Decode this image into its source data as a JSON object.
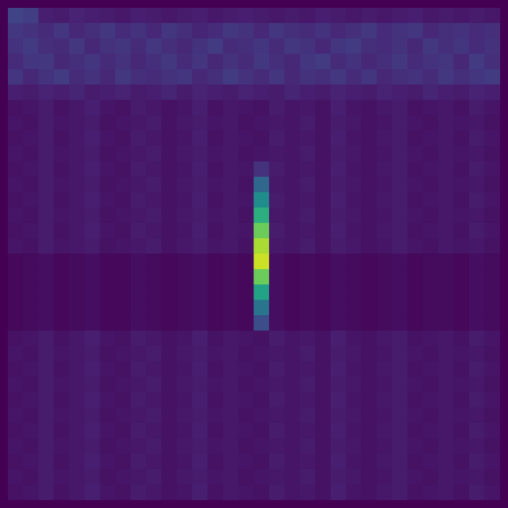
{
  "chart_data": {
    "type": "heatmap",
    "tick_labels": false,
    "grid": false,
    "cells": [
      [
        26,
        24,
        14,
        13,
        15,
        14,
        13,
        12,
        14,
        13,
        12,
        13,
        14,
        12,
        13,
        14,
        13,
        12,
        13,
        12,
        14,
        13,
        12,
        13,
        12,
        13,
        14,
        12,
        13,
        12,
        13,
        12
      ],
      [
        22,
        20,
        18,
        21,
        17,
        19,
        22,
        18,
        20,
        17,
        21,
        19,
        16,
        18,
        22,
        20,
        17,
        21,
        19,
        18,
        20,
        17,
        19,
        22,
        18,
        20,
        21,
        17,
        19,
        20,
        18,
        19
      ],
      [
        20,
        23,
        19,
        18,
        22,
        17,
        20,
        21,
        18,
        22,
        19,
        17,
        20,
        23,
        18,
        19,
        21,
        18,
        22,
        20,
        17,
        21,
        23,
        19,
        18,
        20,
        17,
        22,
        19,
        21,
        18,
        20
      ],
      [
        18,
        21,
        22,
        17,
        19,
        21,
        18,
        20,
        17,
        19,
        22,
        18,
        21,
        17,
        20,
        18,
        22,
        19,
        17,
        21,
        23,
        18,
        20,
        17,
        19,
        22,
        18,
        20,
        21,
        17,
        23,
        19
      ],
      [
        21,
        17,
        20,
        23,
        18,
        20,
        17,
        22,
        19,
        18,
        20,
        21,
        17,
        19,
        23,
        20,
        18,
        21,
        17,
        20,
        19,
        22,
        18,
        21,
        17,
        19,
        20,
        18,
        22,
        19,
        21,
        23
      ],
      [
        14,
        13,
        15,
        14,
        16,
        13,
        14,
        15,
        13,
        14,
        16,
        13,
        15,
        14,
        13,
        15,
        14,
        13,
        16,
        14,
        13,
        15,
        14,
        13,
        15,
        14,
        13,
        16,
        14,
        13,
        15,
        14
      ],
      [
        10,
        11,
        13,
        10,
        12,
        14,
        11,
        10,
        13,
        12,
        10,
        11,
        14,
        10,
        12,
        11,
        10,
        13,
        11,
        12,
        10,
        14,
        11,
        10,
        12,
        13,
        10,
        11,
        12,
        10,
        13,
        11
      ],
      [
        11,
        10,
        13,
        11,
        12,
        13,
        10,
        11,
        12,
        13,
        10,
        12,
        13,
        11,
        12,
        10,
        11,
        12,
        11,
        13,
        10,
        13,
        12,
        10,
        11,
        13,
        11,
        10,
        12,
        11,
        12,
        10
      ],
      [
        10,
        11,
        13,
        10,
        12,
        14,
        11,
        10,
        13,
        12,
        10,
        11,
        14,
        10,
        12,
        11,
        10,
        13,
        11,
        12,
        10,
        14,
        11,
        10,
        12,
        13,
        10,
        11,
        12,
        10,
        13,
        11
      ],
      [
        11,
        10,
        13,
        11,
        12,
        13,
        10,
        11,
        12,
        13,
        10,
        12,
        13,
        11,
        12,
        10,
        11,
        12,
        11,
        13,
        10,
        13,
        12,
        10,
        11,
        13,
        11,
        10,
        12,
        11,
        12,
        10
      ],
      [
        10,
        11,
        13,
        10,
        12,
        14,
        11,
        10,
        13,
        12,
        10,
        11,
        14,
        10,
        12,
        11,
        20,
        13,
        11,
        12,
        10,
        14,
        11,
        10,
        12,
        13,
        10,
        11,
        12,
        10,
        13,
        11
      ],
      [
        11,
        10,
        13,
        11,
        12,
        13,
        10,
        11,
        12,
        13,
        10,
        12,
        13,
        11,
        12,
        10,
        40,
        12,
        11,
        13,
        10,
        13,
        12,
        10,
        11,
        13,
        11,
        10,
        12,
        11,
        12,
        10
      ],
      [
        10,
        11,
        13,
        10,
        12,
        14,
        11,
        10,
        13,
        12,
        10,
        11,
        14,
        10,
        12,
        11,
        55,
        13,
        11,
        12,
        10,
        14,
        11,
        10,
        12,
        13,
        10,
        11,
        12,
        10,
        13,
        11
      ],
      [
        11,
        10,
        13,
        11,
        12,
        13,
        10,
        11,
        12,
        13,
        10,
        12,
        13,
        11,
        12,
        10,
        70,
        12,
        11,
        13,
        10,
        13,
        12,
        10,
        11,
        13,
        11,
        10,
        12,
        11,
        12,
        10
      ],
      [
        10,
        11,
        13,
        10,
        12,
        14,
        11,
        10,
        13,
        12,
        10,
        11,
        14,
        10,
        12,
        11,
        85,
        13,
        11,
        12,
        10,
        14,
        11,
        10,
        12,
        13,
        10,
        11,
        12,
        10,
        13,
        11
      ],
      [
        11,
        10,
        13,
        11,
        12,
        13,
        10,
        11,
        12,
        13,
        10,
        12,
        13,
        11,
        12,
        10,
        95,
        12,
        11,
        13,
        10,
        13,
        12,
        10,
        11,
        13,
        11,
        10,
        12,
        11,
        12,
        10
      ],
      [
        7,
        8,
        9,
        7,
        8,
        9,
        7,
        7,
        9,
        8,
        7,
        8,
        9,
        7,
        8,
        7,
        100,
        9,
        7,
        8,
        7,
        9,
        8,
        7,
        8,
        9,
        7,
        8,
        8,
        7,
        9,
        8
      ],
      [
        7,
        8,
        9,
        7,
        8,
        9,
        7,
        7,
        9,
        8,
        7,
        8,
        9,
        7,
        8,
        7,
        85,
        9,
        7,
        8,
        7,
        9,
        8,
        7,
        8,
        9,
        7,
        8,
        8,
        7,
        9,
        8
      ],
      [
        7,
        8,
        9,
        7,
        8,
        9,
        7,
        7,
        9,
        8,
        7,
        8,
        9,
        7,
        8,
        7,
        65,
        9,
        7,
        8,
        7,
        9,
        8,
        7,
        8,
        9,
        7,
        8,
        8,
        7,
        9,
        8
      ],
      [
        7,
        8,
        9,
        7,
        8,
        9,
        7,
        7,
        9,
        8,
        7,
        8,
        9,
        7,
        8,
        7,
        45,
        9,
        7,
        8,
        7,
        9,
        8,
        7,
        8,
        9,
        7,
        8,
        8,
        7,
        9,
        8
      ],
      [
        7,
        8,
        9,
        7,
        8,
        9,
        7,
        7,
        9,
        8,
        7,
        8,
        9,
        7,
        8,
        7,
        30,
        9,
        7,
        8,
        7,
        9,
        8,
        7,
        8,
        9,
        7,
        8,
        8,
        7,
        9,
        8
      ],
      [
        10,
        11,
        13,
        10,
        12,
        14,
        11,
        10,
        13,
        12,
        10,
        11,
        14,
        10,
        12,
        11,
        10,
        13,
        11,
        12,
        10,
        14,
        11,
        10,
        12,
        13,
        10,
        11,
        12,
        10,
        13,
        11
      ],
      [
        11,
        10,
        13,
        11,
        12,
        13,
        10,
        11,
        12,
        13,
        10,
        12,
        13,
        11,
        12,
        10,
        11,
        12,
        11,
        13,
        10,
        13,
        12,
        10,
        11,
        13,
        11,
        10,
        12,
        11,
        12,
        10
      ],
      [
        10,
        11,
        13,
        10,
        12,
        14,
        11,
        10,
        13,
        12,
        10,
        11,
        14,
        10,
        12,
        11,
        10,
        13,
        11,
        12,
        10,
        14,
        11,
        10,
        12,
        13,
        10,
        11,
        12,
        10,
        13,
        11
      ],
      [
        11,
        10,
        13,
        11,
        12,
        13,
        10,
        11,
        12,
        13,
        10,
        12,
        13,
        11,
        12,
        10,
        11,
        12,
        11,
        13,
        10,
        13,
        12,
        10,
        11,
        13,
        11,
        10,
        12,
        11,
        12,
        10
      ],
      [
        10,
        11,
        13,
        10,
        12,
        14,
        11,
        10,
        13,
        12,
        10,
        11,
        14,
        10,
        12,
        11,
        10,
        13,
        11,
        12,
        10,
        14,
        11,
        10,
        12,
        13,
        10,
        11,
        12,
        10,
        13,
        11
      ],
      [
        11,
        10,
        13,
        11,
        12,
        13,
        10,
        11,
        12,
        13,
        10,
        12,
        13,
        11,
        12,
        10,
        11,
        12,
        11,
        13,
        10,
        13,
        12,
        10,
        11,
        13,
        11,
        10,
        12,
        11,
        12,
        10
      ],
      [
        10,
        11,
        13,
        10,
        12,
        14,
        11,
        10,
        13,
        12,
        10,
        11,
        14,
        10,
        12,
        11,
        10,
        13,
        11,
        12,
        10,
        14,
        11,
        10,
        12,
        13,
        10,
        11,
        12,
        10,
        13,
        11
      ],
      [
        11,
        10,
        13,
        11,
        12,
        13,
        10,
        11,
        12,
        13,
        10,
        12,
        13,
        11,
        12,
        10,
        11,
        12,
        11,
        13,
        10,
        13,
        12,
        10,
        11,
        13,
        11,
        10,
        12,
        11,
        12,
        10
      ],
      [
        10,
        11,
        13,
        10,
        12,
        14,
        11,
        10,
        13,
        12,
        10,
        11,
        14,
        10,
        12,
        11,
        10,
        13,
        11,
        12,
        10,
        14,
        11,
        10,
        12,
        13,
        10,
        11,
        12,
        10,
        13,
        11
      ],
      [
        11,
        10,
        13,
        11,
        12,
        13,
        10,
        11,
        12,
        13,
        10,
        12,
        13,
        11,
        12,
        10,
        11,
        12,
        11,
        13,
        10,
        13,
        12,
        10,
        11,
        13,
        11,
        10,
        12,
        11,
        12,
        10
      ],
      [
        10,
        11,
        13,
        10,
        12,
        14,
        11,
        10,
        13,
        12,
        10,
        11,
        14,
        10,
        12,
        11,
        10,
        13,
        11,
        12,
        10,
        14,
        11,
        10,
        12,
        13,
        10,
        11,
        12,
        10,
        13,
        11
      ]
    ]
  }
}
